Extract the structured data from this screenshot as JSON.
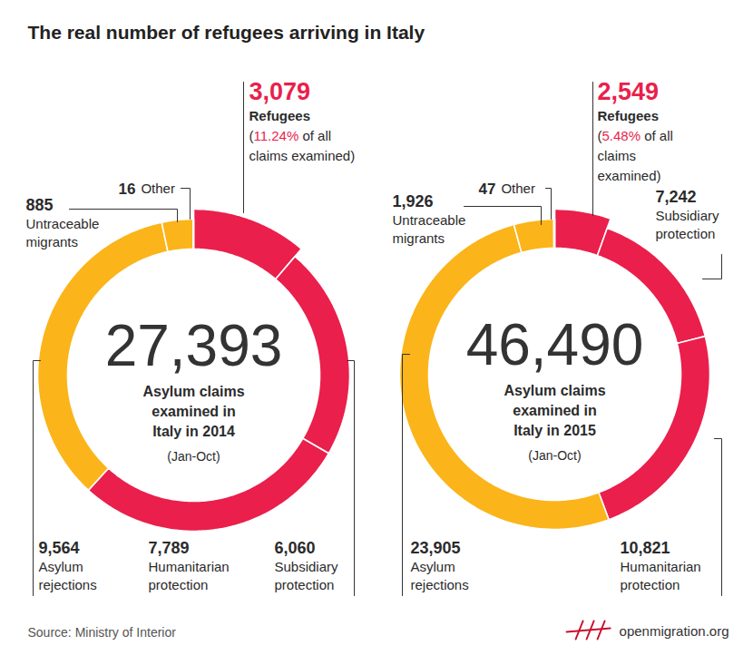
{
  "title": "The real number of refugees arriving in Italy",
  "source": "Source: Ministry of Interior",
  "logo": "openmigration.org",
  "chart_data": [
    {
      "type": "pie",
      "total": 27393,
      "total_label": "27,393",
      "center_text": [
        "Asylum claims",
        "examined in",
        "Italy in 2014"
      ],
      "center_note": "(Jan-Oct)",
      "categories": [
        "Refugees",
        "Subsidiary protection",
        "Humanitarian protection",
        "Asylum rejections",
        "Untraceable migrants",
        "Other"
      ],
      "values": [
        3079,
        6060,
        7789,
        9564,
        885,
        16
      ],
      "value_labels": [
        "3,079",
        "6,060",
        "7,789",
        "9,564",
        "885",
        "16"
      ],
      "colors": [
        "#ea1f4c",
        "#ea1f4c",
        "#ea1f4c",
        "#fbb419",
        "#fbb419",
        "#fbb419"
      ],
      "data_labels": true,
      "annotation": {
        "before": "(",
        "value": 11.24,
        "label": "11.24%",
        "after": " of all claims examined)"
      }
    },
    {
      "type": "pie",
      "total": 46490,
      "total_label": "46,490",
      "center_text": [
        "Asylum claims",
        "examined in",
        "Italy in 2015"
      ],
      "center_note": "(Jan-Oct)",
      "categories": [
        "Refugees",
        "Subsidiary protection",
        "Humanitarian protection",
        "Asylum rejections",
        "Untraceable migrants",
        "Other"
      ],
      "values": [
        2549,
        7242,
        10821,
        23905,
        1926,
        47
      ],
      "value_labels": [
        "2,549",
        "7,242",
        "10,821",
        "23,905",
        "1,926",
        "47"
      ],
      "colors": [
        "#ea1f4c",
        "#ea1f4c",
        "#ea1f4c",
        "#fbb419",
        "#fbb419",
        "#fbb419"
      ],
      "data_labels": true,
      "annotation": {
        "before": "(",
        "value": 5.48,
        "label": "5.48%",
        "after": " of all claims examined)"
      }
    }
  ]
}
